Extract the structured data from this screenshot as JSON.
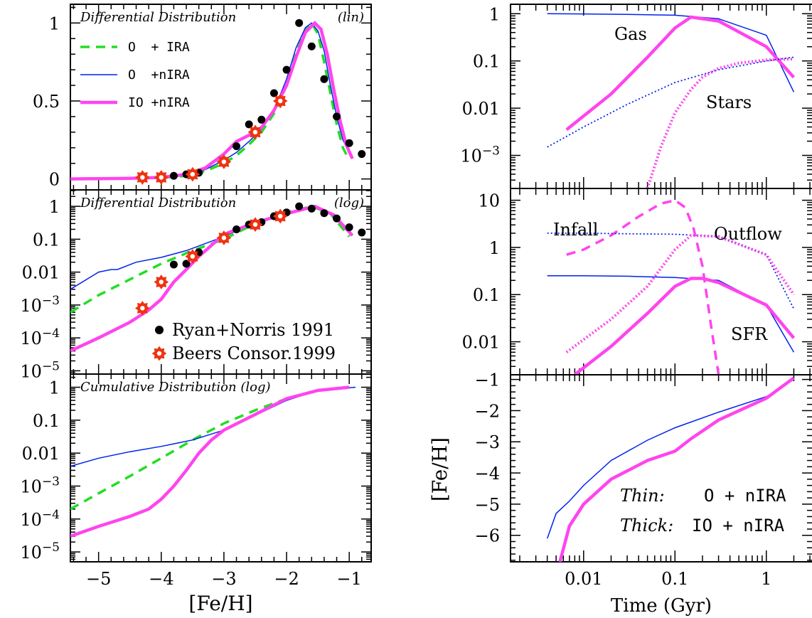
{
  "colors": {
    "green": "#22dd22",
    "blue": "#0022ee",
    "magenta": "#ff44ee",
    "red": "#ee3311",
    "black": "#000000"
  },
  "left": {
    "xlabel": "[Fe/H]",
    "xticks": [
      "−5",
      "−4",
      "−3",
      "−2",
      "−1"
    ],
    "xlim": [
      -5.45,
      -0.65
    ],
    "panel1": {
      "title": "Differential Distribution",
      "tag": "(lin)",
      "yticks": [
        "0",
        "0.5",
        "1"
      ],
      "ylim": [
        -0.07,
        1.12
      ],
      "legend": [
        {
          "label": "O  + IRA",
          "color": "green",
          "style": "dashed"
        },
        {
          "label": "O  +nIRA",
          "color": "blue",
          "style": "thin"
        },
        {
          "label": "IO +nIRA",
          "color": "magenta",
          "style": "thick"
        }
      ]
    },
    "panel2": {
      "title": "Differential Distribution",
      "tag": "(log)",
      "yticks": [
        "1",
        "0.1",
        "0.01",
        "10",
        "10",
        "10"
      ],
      "yticks_exp": [
        "",
        "",
        "",
        "−3",
        "−4",
        "−5"
      ],
      "ylim_log": [
        -5.1,
        0.5
      ],
      "legend": [
        {
          "label": "Ryan+Norris 1991",
          "color": "black",
          "marker": "dot"
        },
        {
          "label": "Beers Consor.1999",
          "color": "red",
          "marker": "star"
        }
      ]
    },
    "panel3": {
      "title": "Cumulative Distribution (log)",
      "yticks": [
        "1",
        "0.1",
        "0.01",
        "10",
        "10",
        "10"
      ],
      "yticks_exp": [
        "",
        "",
        "",
        "−3",
        "−4",
        "−5"
      ],
      "ylim_log": [
        -5.3,
        0.4
      ]
    }
  },
  "right": {
    "xlabel": "Time (Gyr)",
    "xticks": [
      "0.01",
      "0.1",
      "1"
    ],
    "xlim_log": [
      -2.8,
      0.5
    ],
    "panel1": {
      "yticks": [
        "1",
        "0.1",
        "0.01",
        "10"
      ],
      "yticks_exp": [
        "",
        "",
        "",
        "−3"
      ],
      "ylim_log": [
        -3.7,
        0.2
      ],
      "labels": [
        "Gas",
        "Stars"
      ]
    },
    "panel2": {
      "yticks": [
        "10",
        "1",
        "0.1",
        "0.01"
      ],
      "ylim_log": [
        -2.7,
        1.25
      ],
      "labels": [
        "Infall",
        "Outflow",
        "SFR"
      ]
    },
    "panel3": {
      "ylabel": "[Fe/H]",
      "yticks": [
        "−1",
        "−2",
        "−3",
        "−4",
        "−5",
        "−6"
      ],
      "ylim": [
        -6.85,
        -0.85
      ],
      "legend": [
        {
          "name": "Thin:",
          "label": "O + nIRA",
          "color": "blue"
        },
        {
          "name": "Thick:",
          "label": "IO + nIRA",
          "color": "magenta"
        }
      ]
    }
  },
  "chart_data": [
    {
      "type": "line",
      "title": "Differential Distribution (lin)",
      "xlabel": "[Fe/H]",
      "ylabel": "",
      "xlim": [
        -5.45,
        -0.65
      ],
      "ylim": [
        -0.07,
        1.12
      ],
      "series": [
        {
          "name": "O  + IRA",
          "x": [
            -5.45,
            -5,
            -4.5,
            -4,
            -3.6,
            -3.3,
            -3.0,
            -2.8,
            -2.6,
            -2.4,
            -2.2,
            -2.0,
            -1.85,
            -1.7,
            -1.6,
            -1.5,
            -1.4,
            -1.3,
            -1.2,
            -1.1,
            -1.0
          ],
          "y": [
            0,
            0.002,
            0.004,
            0.008,
            0.02,
            0.05,
            0.1,
            0.15,
            0.22,
            0.3,
            0.42,
            0.6,
            0.8,
            0.96,
            1.0,
            0.93,
            0.75,
            0.55,
            0.35,
            0.2,
            0.12
          ]
        },
        {
          "name": "O  +nIRA",
          "x": [
            -5.45,
            -5,
            -4.5,
            -4,
            -3.6,
            -3.3,
            -3.0,
            -2.8,
            -2.6,
            -2.4,
            -2.2,
            -2.0,
            -1.85,
            -1.7,
            -1.6,
            -1.5,
            -1.4,
            -1.3,
            -1.2,
            -1.1,
            -0.95
          ],
          "y": [
            0,
            0.005,
            0.008,
            0.012,
            0.025,
            0.06,
            0.12,
            0.17,
            0.24,
            0.32,
            0.44,
            0.64,
            0.84,
            0.97,
            1.0,
            0.95,
            0.82,
            0.6,
            0.4,
            0.25,
            0.13
          ]
        },
        {
          "name": "IO +nIRA",
          "x": [
            -5.45,
            -5,
            -4.5,
            -4,
            -3.6,
            -3.3,
            -3.0,
            -2.8,
            -2.6,
            -2.4,
            -2.2,
            -2.0,
            -1.85,
            -1.7,
            -1.55,
            -1.45,
            -1.35,
            -1.25,
            -1.15,
            -1.05,
            -0.95
          ],
          "y": [
            0,
            0.002,
            0.004,
            0.01,
            0.03,
            0.07,
            0.16,
            0.24,
            0.28,
            0.33,
            0.44,
            0.6,
            0.78,
            0.94,
            1.0,
            0.96,
            0.8,
            0.58,
            0.38,
            0.22,
            0.13
          ]
        },
        {
          "name": "Ryan+Norris 1991",
          "x": [
            -3.8,
            -3.6,
            -3.4,
            -3.0,
            -2.8,
            -2.6,
            -2.4,
            -2.2,
            -2.0,
            -1.8,
            -1.6,
            -1.4,
            -1.2,
            -1.0,
            -0.8
          ],
          "y": [
            0.02,
            0.03,
            0.04,
            0.12,
            0.21,
            0.35,
            0.38,
            0.55,
            0.7,
            1.0,
            0.85,
            0.64,
            0.4,
            0.23,
            0.16
          ]
        },
        {
          "name": "Beers Consor.1999",
          "x": [
            -4.3,
            -4.0,
            -3.5,
            -3.0,
            -2.5,
            -2.1
          ],
          "y": [
            0.01,
            0.01,
            0.03,
            0.11,
            0.3,
            0.5
          ]
        }
      ]
    },
    {
      "type": "line",
      "title": "Differential Distribution (log)",
      "xlabel": "[Fe/H]",
      "ylabel": "",
      "xlim": [
        -5.45,
        -0.65
      ],
      "ylim": [
        7.9e-06,
        3.2
      ],
      "yscale": "log",
      "series": [
        {
          "name": "O  + IRA",
          "x": [
            -5.45,
            -5,
            -4.5,
            -4,
            -3.5,
            -3,
            -2.5,
            -2,
            -1.6,
            -1.3,
            -1.0
          ],
          "y": [
            0.0006,
            0.002,
            0.006,
            0.018,
            0.045,
            0.1,
            0.3,
            0.65,
            1.0,
            0.6,
            0.12
          ]
        },
        {
          "name": "O  +nIRA",
          "x": [
            -5.45,
            -5.0,
            -4.8,
            -4.7,
            -4.4,
            -4.0,
            -3.6,
            -3.0,
            -2.5,
            -2.0,
            -1.6,
            -1.3,
            -0.95
          ],
          "y": [
            0.003,
            0.01,
            0.012,
            0.012,
            0.02,
            0.028,
            0.045,
            0.12,
            0.32,
            0.64,
            1.0,
            0.6,
            0.13
          ]
        },
        {
          "name": "IO +nIRA",
          "x": [
            -5.45,
            -5,
            -4.5,
            -4.2,
            -4,
            -3.8,
            -3.6,
            -3.4,
            -3.0,
            -2.5,
            -2.0,
            -1.55,
            -1.25,
            -0.95
          ],
          "y": [
            4e-05,
            0.0001,
            0.0003,
            0.0007,
            0.0015,
            0.005,
            0.012,
            0.03,
            0.14,
            0.32,
            0.6,
            1.0,
            0.55,
            0.13
          ]
        },
        {
          "name": "Ryan+Norris 1991",
          "x": [
            -3.8,
            -3.6,
            -3.4,
            -3.0,
            -2.8,
            -2.6,
            -2.4,
            -2.2,
            -2.0,
            -1.8,
            -1.6,
            -1.4,
            -1.2,
            -1.0,
            -0.8
          ],
          "y": [
            0.017,
            0.018,
            0.04,
            0.12,
            0.2,
            0.28,
            0.33,
            0.5,
            0.65,
            1.0,
            0.85,
            0.62,
            0.43,
            0.23,
            0.16
          ]
        },
        {
          "name": "Beers Consor.1999",
          "x": [
            -4.3,
            -4.0,
            -3.5,
            -3.0,
            -2.5,
            -2.1
          ],
          "y": [
            0.0008,
            0.005,
            0.03,
            0.11,
            0.28,
            0.5
          ]
        }
      ]
    },
    {
      "type": "line",
      "title": "Cumulative Distribution (log)",
      "xlabel": "[Fe/H]",
      "ylabel": "",
      "xlim": [
        -5.45,
        -0.65
      ],
      "ylim": [
        5e-06,
        2.5
      ],
      "yscale": "log",
      "series": [
        {
          "name": "O  + IRA",
          "x": [
            -5.45,
            -5,
            -4.5,
            -4,
            -3.5,
            -3,
            -2.5,
            -2,
            -1.5,
            -1.0
          ],
          "y": [
            0.0002,
            0.0006,
            0.002,
            0.007,
            0.025,
            0.08,
            0.2,
            0.45,
            0.8,
            1.0
          ]
        },
        {
          "name": "O  +nIRA",
          "x": [
            -5.45,
            -5,
            -4.5,
            -4,
            -3.5,
            -3,
            -2.5,
            -2,
            -1.5,
            -0.9
          ],
          "y": [
            0.004,
            0.007,
            0.011,
            0.016,
            0.025,
            0.05,
            0.14,
            0.4,
            0.8,
            1.0
          ]
        },
        {
          "name": "IO +nIRA",
          "x": [
            -5.45,
            -5,
            -4.5,
            -4.2,
            -4,
            -3.8,
            -3.6,
            -3.4,
            -3.2,
            -3.0,
            -2.5,
            -2,
            -1.5,
            -1.0
          ],
          "y": [
            3e-05,
            6e-05,
            0.00012,
            0.0002,
            0.0004,
            0.001,
            0.003,
            0.01,
            0.025,
            0.05,
            0.15,
            0.45,
            0.8,
            1.0
          ]
        }
      ]
    },
    {
      "type": "line",
      "title": "",
      "xlabel": "Time (Gyr)",
      "ylabel": "",
      "xscale": "log",
      "yscale": "log",
      "xlim": [
        0.0016,
        3.16
      ],
      "ylim": [
        0.0002,
        1.58
      ],
      "series": [
        {
          "x": [
            0.004,
            0.01,
            0.03,
            0.1,
            0.3,
            1,
            2
          ],
          "y": [
            1,
            0.99,
            0.97,
            0.93,
            0.78,
            0.35,
            0.022
          ],
          "color": "blue",
          "style": "thin"
        },
        {
          "x": [
            0.0065,
            0.02,
            0.05,
            0.1,
            0.15,
            0.3,
            1,
            2
          ],
          "y": [
            0.0035,
            0.02,
            0.12,
            0.5,
            0.85,
            0.7,
            0.2,
            0.045
          ],
          "color": "magenta",
          "style": "thick"
        },
        {
          "x": [
            0.004,
            0.01,
            0.03,
            0.1,
            0.3,
            1,
            2
          ],
          "y": [
            0.0015,
            0.004,
            0.012,
            0.035,
            0.065,
            0.1,
            0.12
          ],
          "color": "blue",
          "style": "dotted"
        },
        {
          "x": [
            0.05,
            0.07,
            0.1,
            0.15,
            0.2,
            0.3,
            0.5,
            1,
            2
          ],
          "y": [
            0.0002,
            0.0015,
            0.008,
            0.025,
            0.045,
            0.07,
            0.09,
            0.105,
            0.11
          ],
          "color": "magenta",
          "style": "dotted"
        }
      ]
    },
    {
      "type": "line",
      "title": "",
      "xlabel": "Time (Gyr)",
      "ylabel": "",
      "xscale": "log",
      "yscale": "log",
      "xlim": [
        0.0016,
        3.16
      ],
      "ylim": [
        0.002,
        17.8
      ],
      "series": [
        {
          "x": [
            0.0065,
            0.01,
            0.02,
            0.04,
            0.07,
            0.1,
            0.13,
            0.16,
            0.2,
            0.25,
            0.3
          ],
          "y": [
            0.7,
            0.9,
            1.8,
            4.5,
            8.5,
            10,
            7,
            2.5,
            0.4,
            0.02,
            0.002
          ],
          "color": "magenta",
          "style": "dashed"
        },
        {
          "x": [
            0.004,
            0.01,
            0.03,
            0.1,
            0.3,
            1,
            2
          ],
          "y": [
            2,
            2,
            1.95,
            1.9,
            1.7,
            0.7,
            0.05
          ],
          "color": "blue",
          "style": "dotted"
        },
        {
          "x": [
            0.0065,
            0.02,
            0.05,
            0.1,
            0.15,
            0.3,
            1,
            2
          ],
          "y": [
            0.006,
            0.03,
            0.15,
            0.9,
            1.8,
            1.7,
            0.7,
            0.1
          ],
          "color": "magenta",
          "style": "dotted"
        },
        {
          "x": [
            0.004,
            0.01,
            0.03,
            0.1,
            0.3,
            1,
            2
          ],
          "y": [
            0.25,
            0.25,
            0.245,
            0.23,
            0.2,
            0.06,
            0.006
          ],
          "color": "blue",
          "style": "thin"
        },
        {
          "x": [
            0.008,
            0.02,
            0.05,
            0.1,
            0.15,
            0.2,
            0.3,
            1,
            2
          ],
          "y": [
            0.002,
            0.008,
            0.04,
            0.15,
            0.22,
            0.22,
            0.18,
            0.06,
            0.012
          ],
          "color": "magenta",
          "style": "thick"
        }
      ]
    },
    {
      "type": "line",
      "title": "",
      "xlabel": "Time (Gyr)",
      "ylabel": "[Fe/H]",
      "xscale": "log",
      "xlim": [
        0.0016,
        3.16
      ],
      "ylim": [
        -6.85,
        -0.85
      ],
      "series": [
        {
          "name": "Thin:",
          "x": [
            0.004,
            0.005,
            0.007,
            0.01,
            0.02,
            0.05,
            0.1,
            0.3,
            1,
            2
          ],
          "y": [
            -6.1,
            -5.3,
            -4.9,
            -4.4,
            -3.6,
            -2.95,
            -2.55,
            -2.05,
            -1.55,
            -1.0
          ],
          "color": "blue"
        },
        {
          "name": "Thick:",
          "x": [
            0.0055,
            0.007,
            0.01,
            0.02,
            0.05,
            0.1,
            0.15,
            0.3,
            1,
            2
          ],
          "y": [
            -6.85,
            -5.7,
            -5.0,
            -4.2,
            -3.6,
            -3.3,
            -2.9,
            -2.3,
            -1.6,
            -0.95
          ],
          "color": "magenta"
        }
      ]
    }
  ]
}
